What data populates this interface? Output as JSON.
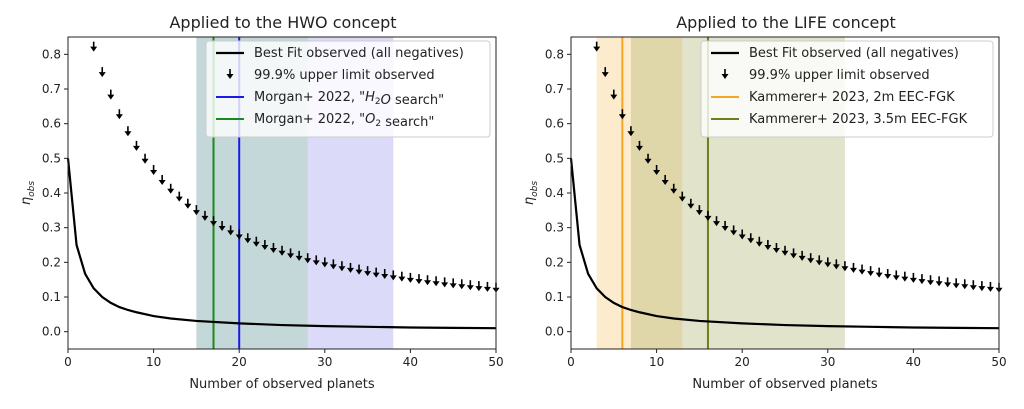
{
  "chart_data": [
    {
      "type": "line",
      "title": "Applied to the HWO concept",
      "xlabel": "Number of observed planets",
      "ylabel": "η",
      "ylabel_sub": "obs",
      "xlim": [
        0,
        50
      ],
      "ylim": [
        -0.05,
        0.85
      ],
      "xticks": [
        0,
        10,
        20,
        30,
        40,
        50
      ],
      "yticks": [
        0.0,
        0.1,
        0.2,
        0.3,
        0.4,
        0.5,
        0.6,
        0.7,
        0.8
      ],
      "grid": false,
      "legend_position": "top-right",
      "best_fit": {
        "name": "Best Fit observed (all negatives)",
        "color": "#000000",
        "x": [
          0,
          1,
          2,
          3,
          4,
          5,
          6,
          7,
          8,
          10,
          12,
          15,
          20,
          25,
          30,
          35,
          40,
          45,
          50
        ],
        "y": [
          0.5,
          0.25,
          0.167,
          0.125,
          0.1,
          0.083,
          0.071,
          0.0625,
          0.056,
          0.045,
          0.038,
          0.031,
          0.024,
          0.019,
          0.016,
          0.014,
          0.012,
          0.011,
          0.01
        ]
      },
      "upper_limit": {
        "name": "99.9% upper limit observed",
        "color": "#000000",
        "x_start": 3,
        "x_end": 50,
        "x_step": 1,
        "formula_note": "y = 1 - 0.001^(1/(x+1))"
      },
      "references": [
        {
          "name_prefix": "Morgan+ 2022, \"",
          "name_italic": "H",
          "name_sub": "2",
          "name_italic2": "O",
          "name_suffix": " search\"",
          "color": "#1a1ae6",
          "x": 20,
          "band": [
            15,
            38
          ],
          "band_color": "#9999ee"
        },
        {
          "name_prefix": "Morgan+ 2022, \"",
          "name_italic": "O",
          "name_sub": "2",
          "name_italic2": "",
          "name_suffix": " search\"",
          "color": "#1a8a1a",
          "x": 17,
          "band": [
            15,
            28
          ],
          "band_color": "#9fd49f"
        }
      ],
      "legend": [
        "Best Fit observed (all negatives)",
        "99.9% upper limit observed",
        "Morgan+ 2022, \"H2O search\"",
        "Morgan+ 2022, \"O2 search\""
      ]
    },
    {
      "type": "line",
      "title": "Applied to the LIFE concept",
      "xlabel": "Number of observed planets",
      "ylabel": "η",
      "ylabel_sub": "obs",
      "xlim": [
        0,
        50
      ],
      "ylim": [
        -0.05,
        0.85
      ],
      "xticks": [
        0,
        10,
        20,
        30,
        40,
        50
      ],
      "yticks": [
        0.0,
        0.1,
        0.2,
        0.3,
        0.4,
        0.5,
        0.6,
        0.7,
        0.8
      ],
      "grid": false,
      "legend_position": "top-right",
      "best_fit": {
        "name": "Best Fit observed (all negatives)",
        "color": "#000000",
        "x": [
          0,
          1,
          2,
          3,
          4,
          5,
          6,
          7,
          8,
          10,
          12,
          15,
          20,
          25,
          30,
          35,
          40,
          45,
          50
        ],
        "y": [
          0.5,
          0.25,
          0.167,
          0.125,
          0.1,
          0.083,
          0.071,
          0.0625,
          0.056,
          0.045,
          0.038,
          0.031,
          0.024,
          0.019,
          0.016,
          0.014,
          0.012,
          0.011,
          0.01
        ]
      },
      "upper_limit": {
        "name": "99.9% upper limit observed",
        "color": "#000000",
        "x_start": 3,
        "x_end": 50,
        "x_step": 1,
        "formula_note": "y = 1 - 0.001^(1/(x+1))"
      },
      "references": [
        {
          "name_prefix": "Kammerer+ 2023, 2m EEC-FGK",
          "name_italic": "",
          "name_sub": "",
          "name_italic2": "",
          "name_suffix": "",
          "color": "#f5a623",
          "x": 6,
          "band": [
            3,
            13
          ],
          "band_color": "#f7c66e"
        },
        {
          "name_prefix": "Kammerer+ 2023, 3.5m EEC-FGK",
          "name_italic": "",
          "name_sub": "",
          "name_italic2": "",
          "name_suffix": "",
          "color": "#6b7f1a",
          "x": 16,
          "band": [
            7,
            32
          ],
          "band_color": "#a8b06a"
        }
      ],
      "legend": [
        "Best Fit observed (all negatives)",
        "99.9% upper limit observed",
        "Kammerer+ 2023, 2m EEC-FGK",
        "Kammerer+ 2023, 3.5m EEC-FGK"
      ]
    }
  ]
}
